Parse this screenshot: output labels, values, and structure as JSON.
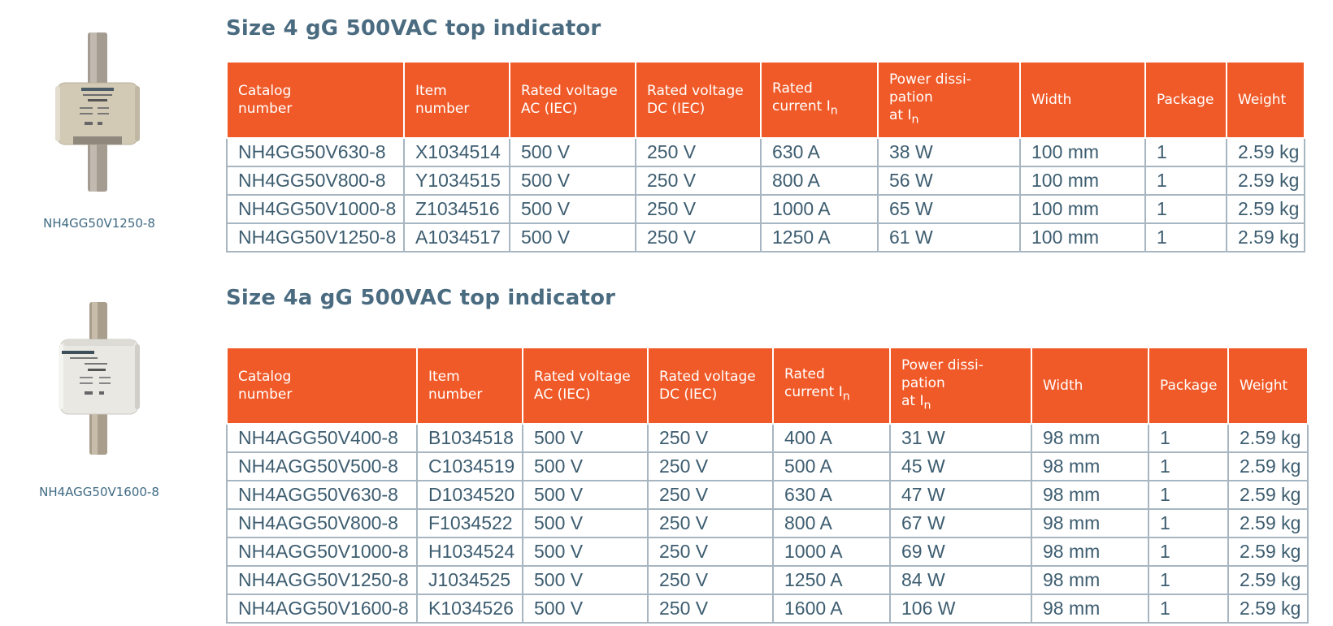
{
  "sections": [
    {
      "title": "Size 4 gG 500VAC top indicator",
      "product_caption": "NH4GG50V1250-8",
      "headers": [
        "Catalog number",
        "Item number",
        "Rated voltage AC (IEC)",
        "Rated voltage DC (IEC)",
        "Rated current In",
        "Power dissi-pation at In",
        "Width",
        "Package",
        "Weight"
      ],
      "rows": [
        [
          "NH4GG50V630-8",
          "X1034514",
          "500 V",
          "250 V",
          "630 A",
          "38 W",
          "100 mm",
          "1",
          "2.59 kg"
        ],
        [
          "NH4GG50V800-8",
          "Y1034515",
          "500 V",
          "250 V",
          "800 A",
          "56 W",
          "100 mm",
          "1",
          "2.59 kg"
        ],
        [
          "NH4GG50V1000-8",
          "Z1034516",
          "500 V",
          "250 V",
          "1000 A",
          "65 W",
          "100 mm",
          "1",
          "2.59 kg"
        ],
        [
          "NH4GG50V1250-8",
          "A1034517",
          "500 V",
          "250 V",
          "1250 A",
          "61 W",
          "100 mm",
          "1",
          "2.59 kg"
        ]
      ]
    },
    {
      "title": "Size 4a gG 500VAC top indicator",
      "product_caption": "NH4AGG50V1600-8",
      "headers": [
        "Catalog number",
        "Item number",
        "Rated voltage AC (IEC)",
        "Rated voltage DC (IEC)",
        "Rated current In",
        "Power dissi-pation at In",
        "Width",
        "Package",
        "Weight"
      ],
      "rows": [
        [
          "NH4AGG50V400-8",
          "B1034518",
          "500 V",
          "250 V",
          "400 A",
          "31 W",
          "98 mm",
          "1",
          "2.59 kg"
        ],
        [
          "NH4AGG50V500-8",
          "C1034519",
          "500 V",
          "250 V",
          "500 A",
          "45 W",
          "98 mm",
          "1",
          "2.59 kg"
        ],
        [
          "NH4AGG50V630-8",
          "D1034520",
          "500 V",
          "250 V",
          "630 A",
          "47 W",
          "98 mm",
          "1",
          "2.59 kg"
        ],
        [
          "NH4AGG50V800-8",
          "F1034522",
          "500 V",
          "250 V",
          "800 A",
          "67 W",
          "98 mm",
          "1",
          "2.59 kg"
        ],
        [
          "NH4AGG50V1000-8",
          "H1034524",
          "500 V",
          "250 V",
          "1000 A",
          "69 W",
          "98 mm",
          "1",
          "2.59 kg"
        ],
        [
          "NH4AGG50V1250-8",
          "J1034525",
          "500 V",
          "250 V",
          "1250 A",
          "84 W",
          "98 mm",
          "1",
          "2.59 kg"
        ],
        [
          "NH4AGG50V1600-8",
          "K1034526",
          "500 V",
          "250 V",
          "1600 A",
          "106 W",
          "98 mm",
          "1",
          "2.59 kg"
        ]
      ]
    }
  ],
  "colors": {
    "header_bg": "#f05a28",
    "title": "#4a6b80",
    "cell_text": "#3d5d70",
    "grid": "#a7b6c1"
  }
}
